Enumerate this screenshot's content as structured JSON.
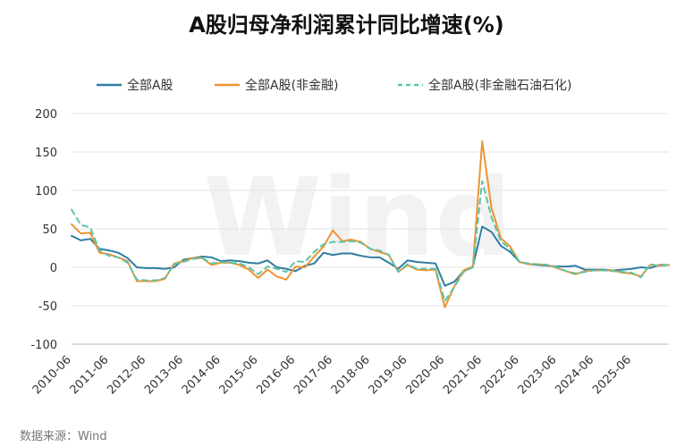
{
  "chart_data": {
    "type": "line",
    "title": "A股归母净利润累计同比增速(%)",
    "source": "数据来源：Wind",
    "watermark": "Wind",
    "ylim": [
      -100,
      200
    ],
    "yticks": [
      200,
      150,
      100,
      50,
      0,
      -50,
      -100
    ],
    "grid": true,
    "legend_position": "top",
    "xtick_labels": [
      "2010-06",
      "2011-06",
      "2012-06",
      "2013-06",
      "2014-06",
      "2015-06",
      "2016-06",
      "2017-06",
      "2018-06",
      "2019-06",
      "2020-06",
      "2021-06",
      "2022-06",
      "2023-06",
      "2024-06",
      "2025-06"
    ],
    "x_start": "2010-06",
    "x_step": "quarter",
    "series": [
      {
        "name": "全部A股",
        "color": "#2f7ea3",
        "dash": "solid",
        "values": [
          41,
          35,
          37,
          24,
          22,
          19,
          12,
          0,
          -1,
          -1,
          -2,
          0,
          10,
          12,
          14,
          13,
          8,
          9,
          8,
          6,
          5,
          9,
          0,
          -2,
          -5,
          2,
          5,
          19,
          16,
          18,
          18,
          15,
          13,
          13,
          6,
          -2,
          9,
          7,
          6,
          5,
          -24,
          -19,
          -5,
          1,
          53,
          46,
          28,
          20,
          7,
          4,
          3,
          2,
          1,
          1,
          2,
          -3,
          -3,
          -3,
          -4,
          -3,
          -2,
          0,
          -1,
          3,
          3
        ]
      },
      {
        "name": "全部A股(非金融)",
        "color": "#ef9431",
        "dash": "solid",
        "values": [
          56,
          44,
          45,
          19,
          17,
          13,
          8,
          -18,
          -18,
          -18,
          -15,
          5,
          8,
          12,
          12,
          3,
          6,
          6,
          3,
          -3,
          -14,
          -3,
          -12,
          -16,
          1,
          0,
          14,
          27,
          48,
          34,
          36,
          33,
          24,
          20,
          16,
          -6,
          3,
          -3,
          -4,
          -3,
          -52,
          -25,
          -4,
          1,
          164,
          77,
          38,
          27,
          7,
          4,
          4,
          3,
          -1,
          -5,
          -9,
          -5,
          -4,
          -4,
          -4,
          -7,
          -8,
          -12,
          3,
          2,
          3
        ]
      },
      {
        "name": "全部A股(非金融石油石化)",
        "color": "#5cc4a8",
        "dash": "dashed",
        "values": [
          75,
          55,
          52,
          22,
          15,
          13,
          6,
          -16,
          -17,
          -17,
          -14,
          4,
          7,
          11,
          12,
          5,
          7,
          6,
          5,
          0,
          -9,
          1,
          -2,
          -6,
          8,
          7,
          20,
          30,
          33,
          33,
          34,
          32,
          24,
          22,
          16,
          -6,
          4,
          -2,
          -2,
          -2,
          -44,
          -26,
          -6,
          0,
          112,
          65,
          34,
          24,
          7,
          5,
          4,
          3,
          0,
          -5,
          -8,
          -6,
          -4,
          -4,
          -5,
          -6,
          -7,
          -13,
          4,
          2,
          3
        ]
      }
    ]
  }
}
